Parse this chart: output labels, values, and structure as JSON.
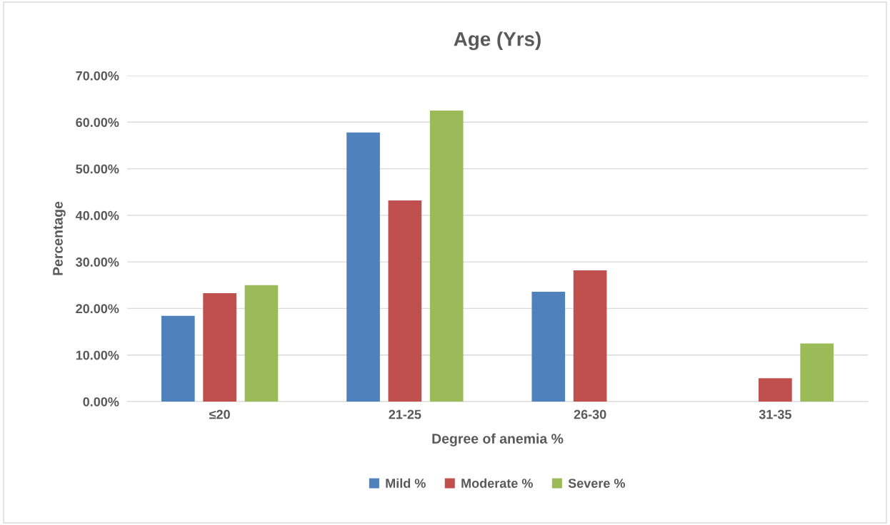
{
  "chart_data": {
    "type": "bar",
    "title": "Age (Yrs)",
    "xlabel": "Degree of anemia %",
    "ylabel": "Percentage",
    "categories": [
      "≤20",
      "21-25",
      "26-30",
      "31-35"
    ],
    "series": [
      {
        "name": "Mild %",
        "color": "#4f81bd",
        "values": [
          18.4,
          57.8,
          23.6,
          0
        ]
      },
      {
        "name": "Moderate %",
        "color": "#c0504d",
        "values": [
          23.3,
          43.2,
          28.2,
          5.0
        ]
      },
      {
        "name": "Severe %",
        "color": "#9bbb59",
        "values": [
          25.0,
          62.5,
          0,
          12.5
        ]
      }
    ],
    "ylim": [
      0,
      70
    ],
    "yticks": [
      {
        "value": 0,
        "label": "0.00%"
      },
      {
        "value": 10,
        "label": "10.00%"
      },
      {
        "value": 20,
        "label": "20.00%"
      },
      {
        "value": 30,
        "label": "30.00%"
      },
      {
        "value": 40,
        "label": "40.00%"
      },
      {
        "value": 50,
        "label": "50.00%"
      },
      {
        "value": 60,
        "label": "60.00%"
      },
      {
        "value": 70,
        "label": "70.00%"
      }
    ],
    "grid": "y",
    "legend": "bottom"
  }
}
